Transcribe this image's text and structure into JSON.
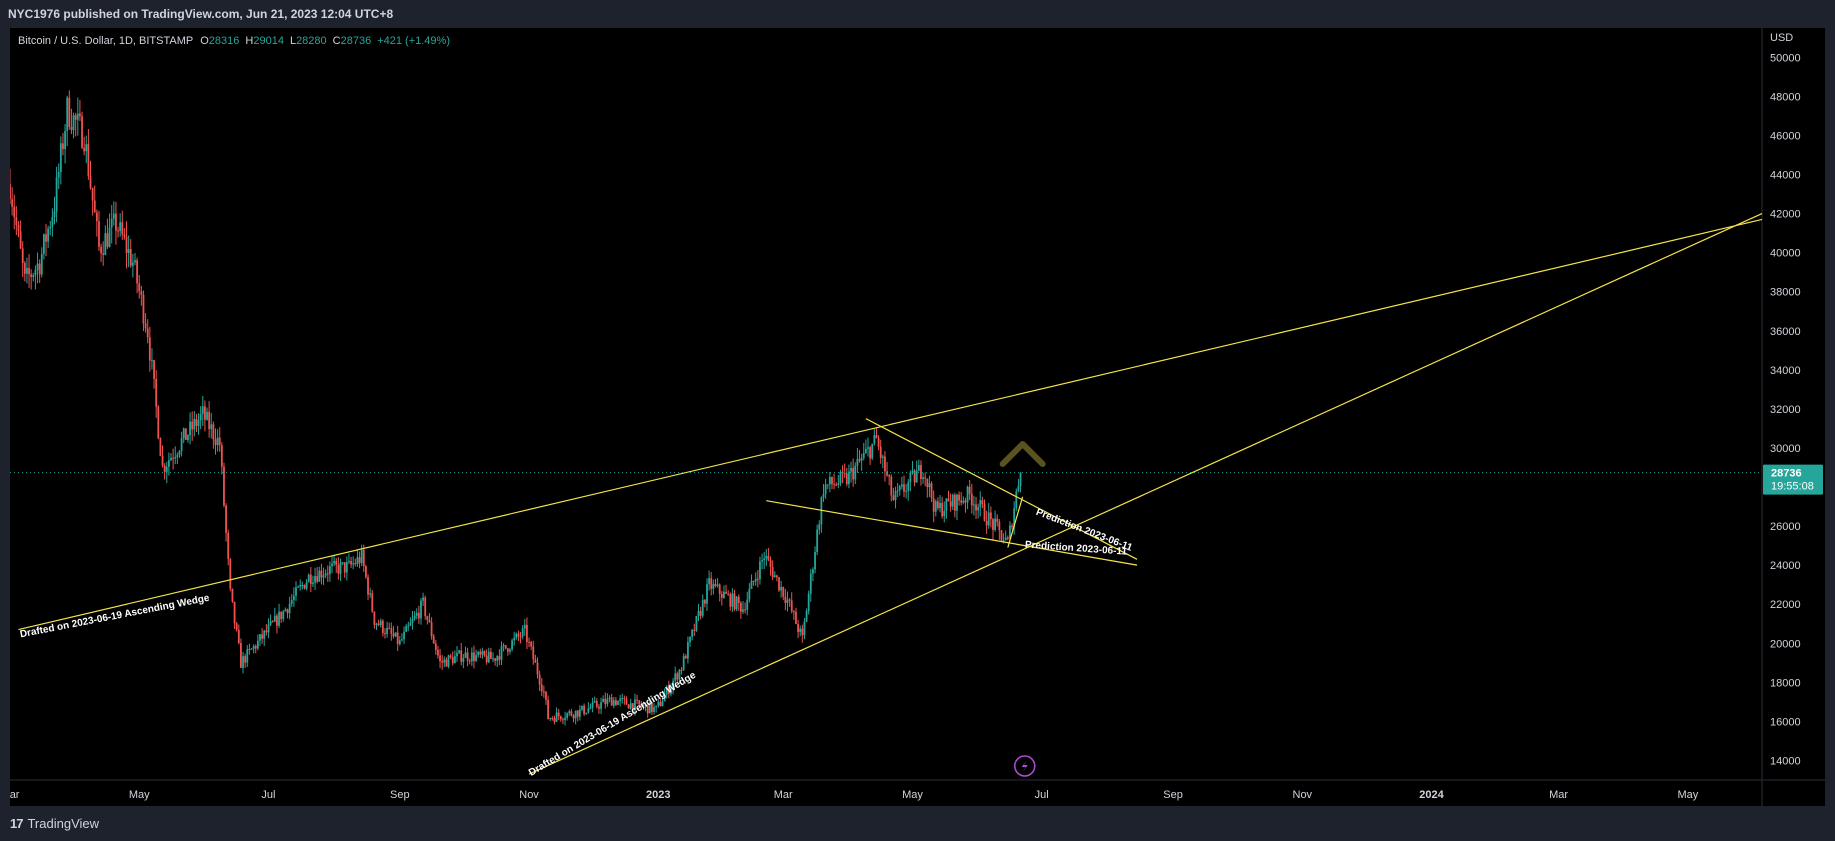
{
  "header": {
    "published_by": "NYC1976 published on TradingView.com, Jun 21, 2023 12:04 UTC+8"
  },
  "legend": {
    "symbol": "Bitcoin / U.S. Dollar, 1D, BITSTAMP",
    "open_label": "O",
    "open": "28316",
    "high_label": "H",
    "high": "29014",
    "low_label": "L",
    "low": "28280",
    "close_label": "C",
    "close": "28736",
    "change": "+421 (+1.49%)"
  },
  "footer": {
    "brand": "TradingView",
    "logo_mark": "17"
  },
  "colors": {
    "up": "#26a69a",
    "down": "#ef5350",
    "trendline": "#f5e44a",
    "price_badge": "#26a69a",
    "background": "#000000"
  },
  "chart_data": {
    "type": "candlestick",
    "title": "Bitcoin / U.S. Dollar, 1D, BITSTAMP",
    "ylabel": "USD",
    "ylim": [
      13000,
      51500
    ],
    "xlim": [
      "2022-03-01",
      "2024-06-05"
    ],
    "y_ticks": [
      "50000",
      "48000",
      "46000",
      "44000",
      "42000",
      "40000",
      "38000",
      "36000",
      "34000",
      "32000",
      "30000",
      "28000",
      "26000",
      "24000",
      "22000",
      "20000",
      "18000",
      "16000",
      "14000"
    ],
    "x_ticks": [
      {
        "label": "Mar",
        "date": "2022-03-01"
      },
      {
        "label": "May",
        "date": "2022-05-01"
      },
      {
        "label": "Jul",
        "date": "2022-07-01"
      },
      {
        "label": "Sep",
        "date": "2022-09-01"
      },
      {
        "label": "Nov",
        "date": "2022-11-01"
      },
      {
        "label": "2023",
        "date": "2023-01-01",
        "bold": true
      },
      {
        "label": "Mar",
        "date": "2023-03-01"
      },
      {
        "label": "May",
        "date": "2023-05-01"
      },
      {
        "label": "Jul",
        "date": "2023-07-01"
      },
      {
        "label": "Sep",
        "date": "2023-09-01"
      },
      {
        "label": "Nov",
        "date": "2023-11-01"
      },
      {
        "label": "2024",
        "date": "2024-01-01",
        "bold": true
      },
      {
        "label": "Mar",
        "date": "2024-03-01"
      },
      {
        "label": "May",
        "date": "2024-05-01"
      }
    ],
    "last_price": "28736",
    "countdown": "19:55:08",
    "price_path": [
      [
        "2022-03-01",
        43500
      ],
      [
        "2022-03-08",
        38500
      ],
      [
        "2022-03-15",
        39500
      ],
      [
        "2022-03-22",
        42500
      ],
      [
        "2022-03-28",
        47300
      ],
      [
        "2022-04-05",
        46000
      ],
      [
        "2022-04-12",
        40200
      ],
      [
        "2022-04-20",
        41500
      ],
      [
        "2022-04-28",
        39500
      ],
      [
        "2022-05-05",
        36000
      ],
      [
        "2022-05-12",
        29000
      ],
      [
        "2022-05-20",
        30200
      ],
      [
        "2022-05-31",
        31700
      ],
      [
        "2022-06-08",
        30200
      ],
      [
        "2022-06-13",
        22500
      ],
      [
        "2022-06-18",
        19000
      ],
      [
        "2022-06-28",
        20300
      ],
      [
        "2022-07-08",
        21600
      ],
      [
        "2022-07-20",
        23400
      ],
      [
        "2022-07-30",
        23800
      ],
      [
        "2022-08-08",
        23900
      ],
      [
        "2022-08-14",
        24400
      ],
      [
        "2022-08-20",
        21200
      ],
      [
        "2022-09-01",
        20000
      ],
      [
        "2022-09-12",
        22000
      ],
      [
        "2022-09-20",
        19000
      ],
      [
        "2022-10-01",
        19400
      ],
      [
        "2022-10-15",
        19200
      ],
      [
        "2022-10-30",
        20600
      ],
      [
        "2022-11-08",
        17500
      ],
      [
        "2022-11-10",
        16200
      ],
      [
        "2022-11-25",
        16500
      ],
      [
        "2022-12-10",
        17100
      ],
      [
        "2022-12-31",
        16600
      ],
      [
        "2023-01-12",
        18800
      ],
      [
        "2023-01-25",
        23000
      ],
      [
        "2023-02-10",
        21800
      ],
      [
        "2023-02-20",
        24500
      ],
      [
        "2023-03-03",
        22200
      ],
      [
        "2023-03-10",
        20200
      ],
      [
        "2023-03-20",
        28000
      ],
      [
        "2023-03-31",
        28400
      ],
      [
        "2023-04-14",
        30400
      ],
      [
        "2023-04-22",
        27300
      ],
      [
        "2023-05-06",
        29000
      ],
      [
        "2023-05-12",
        26800
      ],
      [
        "2023-05-28",
        27600
      ],
      [
        "2023-06-10",
        25800
      ],
      [
        "2023-06-15",
        25100
      ],
      [
        "2023-06-20",
        28300
      ],
      [
        "2023-06-21",
        28736
      ]
    ],
    "trendlines": [
      {
        "name": "wedge-upper",
        "from": [
          "2022-03-05",
          20700
        ],
        "to": [
          "2024-06-05",
          41700
        ]
      },
      {
        "name": "wedge-lower",
        "from": [
          "2022-11-01",
          13300
        ],
        "to": [
          "2024-06-05",
          42000
        ]
      },
      {
        "name": "triangle-upper",
        "from": [
          "2023-04-09",
          31500
        ],
        "to": [
          "2023-08-15",
          24300
        ]
      },
      {
        "name": "triangle-lower",
        "from": [
          "2023-02-21",
          27300
        ],
        "to": [
          "2023-08-15",
          24000
        ]
      },
      {
        "name": "projection",
        "from": [
          "2023-06-15",
          24900
        ],
        "to": [
          "2023-06-22",
          27500
        ]
      }
    ],
    "annotations": [
      {
        "text": "Drafted on 2023-06-19 Ascending Wedge",
        "date": "2022-03-06",
        "price": 20300,
        "angle": -11
      },
      {
        "text": "Drafted on 2023-06-19 Ascending Wedge",
        "date": "2022-11-02",
        "price": 13200,
        "angle": -31
      },
      {
        "text": "Prediction 2023-06-11",
        "date": "2023-06-28",
        "price": 26600,
        "angle": 21
      },
      {
        "text": "Prediction 2023-06-11",
        "date": "2023-06-23",
        "price": 24900,
        "angle": 4
      }
    ],
    "up_arrow": {
      "date": "2023-06-22",
      "price": 30200
    }
  }
}
